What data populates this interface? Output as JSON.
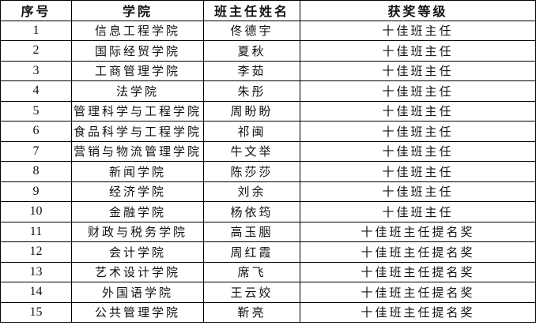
{
  "headers": [
    "序号",
    "学院",
    "班主任姓名",
    "获奖等级"
  ],
  "rows": [
    [
      "1",
      "信息工程学院",
      "佟德宇",
      "十佳班主任"
    ],
    [
      "2",
      "国际经贸学院",
      "夏秋",
      "十佳班主任"
    ],
    [
      "3",
      "工商管理学院",
      "李茹",
      "十佳班主任"
    ],
    [
      "4",
      "法学院",
      "朱彤",
      "十佳班主任"
    ],
    [
      "5",
      "管理科学与工程学院",
      "周盼盼",
      "十佳班主任"
    ],
    [
      "6",
      "食品科学与工程学院",
      "祁闽",
      "十佳班主任"
    ],
    [
      "7",
      "营销与物流管理学院",
      "牛文举",
      "十佳班主任"
    ],
    [
      "8",
      "新闻学院",
      "陈莎莎",
      "十佳班主任"
    ],
    [
      "9",
      "经济学院",
      "刘余",
      "十佳班主任"
    ],
    [
      "10",
      "金融学院",
      "杨依筠",
      "十佳班主任"
    ],
    [
      "11",
      "财政与税务学院",
      "高玉胭",
      "十佳班主任提名奖"
    ],
    [
      "12",
      "会计学院",
      "周红霞",
      "十佳班主任提名奖"
    ],
    [
      "13",
      "艺术设计学院",
      "席飞",
      "十佳班主任提名奖"
    ],
    [
      "14",
      "外国语学院",
      "王云姣",
      "十佳班主任提名奖"
    ],
    [
      "15",
      "公共管理学院",
      "靳亮",
      "十佳班主任提名奖"
    ]
  ]
}
